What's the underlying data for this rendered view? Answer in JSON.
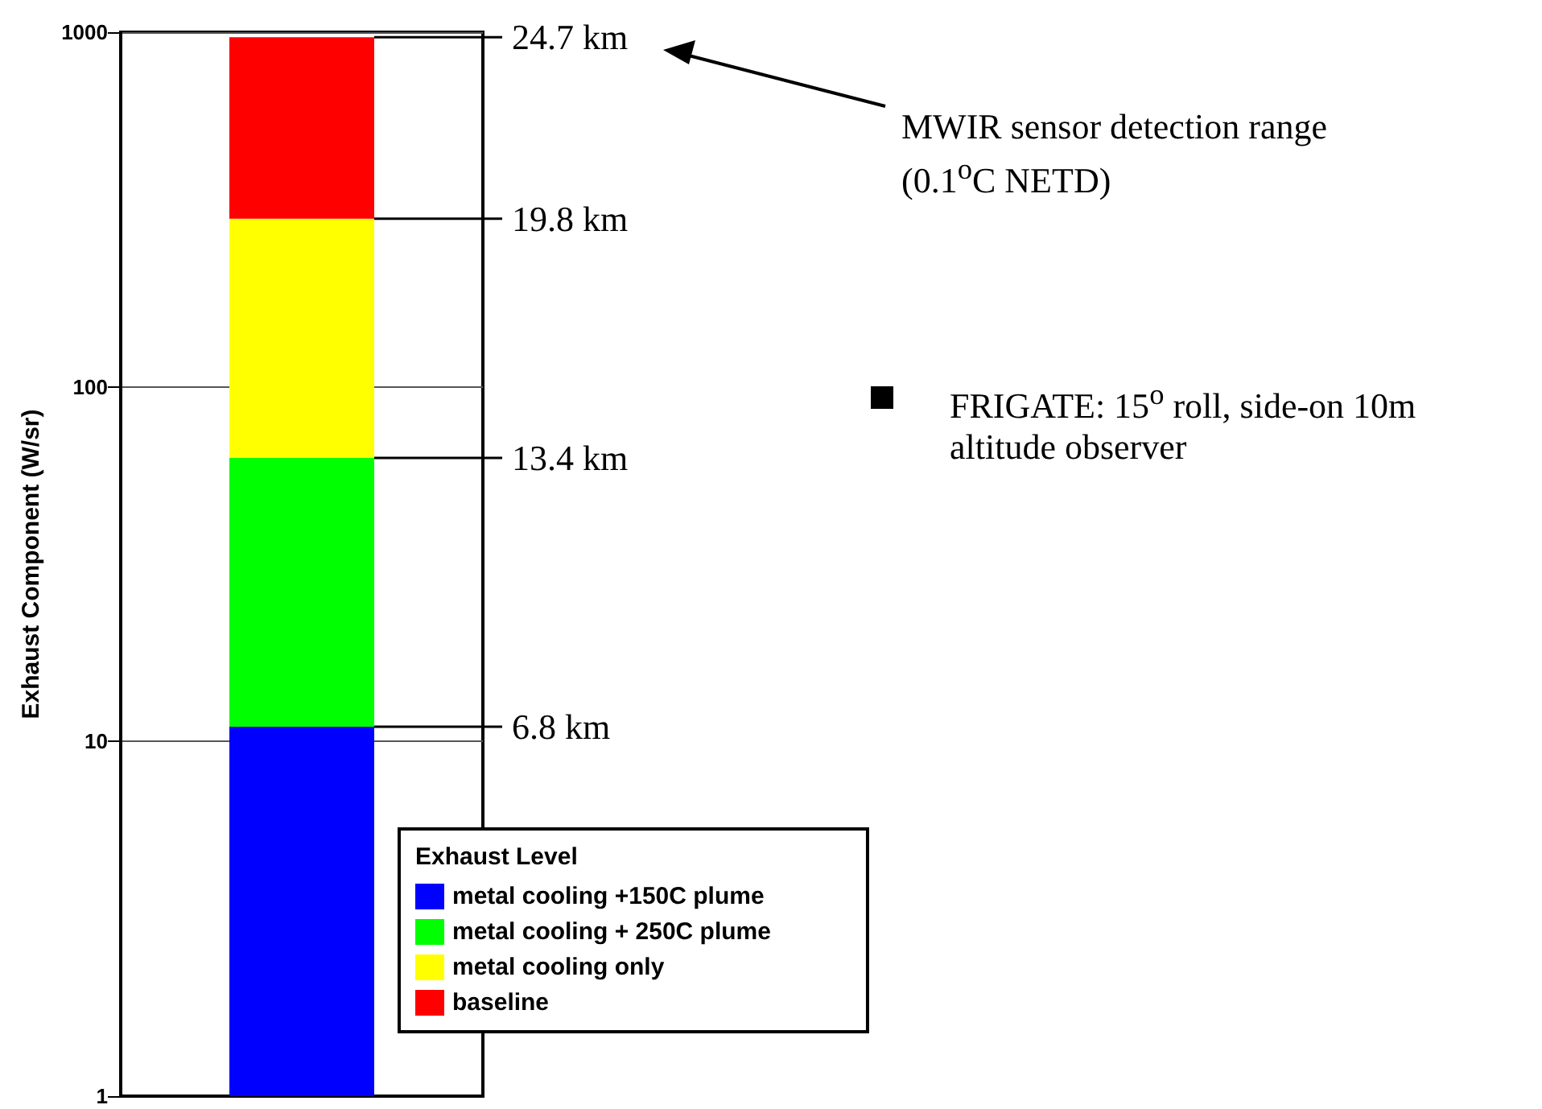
{
  "chart_data": {
    "type": "bar",
    "stacked": true,
    "categories": [
      null
    ],
    "ylabel": "Exhaust Component (W/sr)",
    "legend_title": "Exhaust Level",
    "legend": "bottom right",
    "log": "y",
    "ylim": [
      1,
      1000
    ],
    "yticks": [
      1,
      10,
      100,
      1000
    ],
    "grid": "y",
    "series": [
      {
        "name": "metal cooling +150C plume",
        "color": "#0000ff",
        "values": [
          11
        ]
      },
      {
        "name": "metal cooling + 250C plume",
        "color": "#00ff00",
        "values": [
          52
        ]
      },
      {
        "name": "metal cooling only",
        "color": "#ffff00",
        "values": [
          235
        ]
      },
      {
        "name": "baseline",
        "color": "#ff0000",
        "values": [
          670
        ]
      }
    ],
    "annotations": [
      "24.7 km",
      "19.8 km",
      "13.4 km",
      "6.8 km",
      "MWIR sensor detection range (0.1$^{o}$C NETD)",
      "FRIGATE:  15$^{o}$ roll, side-on 10m altitude observer"
    ]
  }
}
